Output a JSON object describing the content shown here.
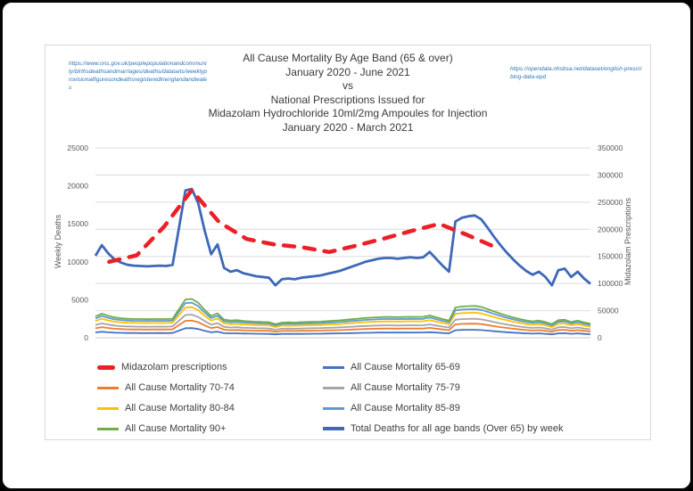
{
  "title": {
    "line1": "All Cause Mortality By Age Band (65 & over)",
    "line2": "January 2020 - June 2021",
    "line3": "vs",
    "line4": "National Prescriptions Issued for",
    "line5": "Midazolam Hydrochloride 10ml/2mg Ampoules for Injection",
    "line6": "January 2020 - March 2021"
  },
  "links": {
    "ons": "https://www.ons.gov.uk/peoplepopulationandcommunity/birthsdeathsandmarriages/deaths/datasets/weeklyprovisionalfiguresondeathsregisteredinenglandandwales",
    "nhsbsa": "https://opendata.nhsbsa.net/dataset/english-prescribing-data-epd"
  },
  "axes": {
    "left_title": "Weekly Deaths",
    "right_title": "Midazolam Prescriptions",
    "left_ticks": [
      0,
      5000,
      10000,
      15000,
      20000,
      25000
    ],
    "right_ticks": [
      0,
      50000,
      100000,
      150000,
      200000,
      250000,
      300000,
      350000
    ]
  },
  "legend": {
    "items": [
      {
        "label": "Midazolam prescriptions",
        "color": "#ec1f27",
        "style": "dash-thick"
      },
      {
        "label": "All Cause Mortality 65-69",
        "color": "#4472c4",
        "style": "line"
      },
      {
        "label": "All Cause Mortality 70-74",
        "color": "#ed7d31",
        "style": "line"
      },
      {
        "label": "All Cause Mortality 75-79",
        "color": "#a5a5a5",
        "style": "line"
      },
      {
        "label": "All Cause Mortality 80-84",
        "color": "#ffc000",
        "style": "line"
      },
      {
        "label": "All Cause Mortality 85-89",
        "color": "#5b9bd5",
        "style": "line"
      },
      {
        "label": "All Cause Mortality 90+",
        "color": "#70ad47",
        "style": "line"
      },
      {
        "label": "Total Deaths for all age bands (Over 65) by week",
        "color": "#3e68b8",
        "style": "line-thick"
      }
    ]
  },
  "chart_data": {
    "type": "line",
    "x_description": "Weekly points Jan 2020 - Jun 2021 (78 weeks, no x tick labels shown); Midazolam series is monthly Jan 2020 - Mar 2021 (15 months)",
    "left_axis": {
      "title": "Weekly Deaths",
      "range": [
        0,
        25000
      ]
    },
    "right_axis": {
      "title": "Midazolam Prescriptions",
      "range": [
        0,
        350000
      ]
    },
    "grid": "horizontal gridlines at right-axis ticks",
    "legend_position": "bottom, two columns",
    "series": [
      {
        "id": "mortality-70-74",
        "name": "All Cause Mortality 70-74",
        "axis": "left",
        "color": "#ed7d31",
        "dashed": false,
        "values": [
          1240,
          1400,
          1280,
          1180,
          1140,
          1100,
          1090,
          1090,
          1080,
          1090,
          1090,
          1090,
          1100,
          1670,
          2230,
          2250,
          2040,
          1620,
          1270,
          1410,
          1060,
          1000,
          1020,
          980,
          950,
          930,
          920,
          910,
          790,
          890,
          900,
          890,
          910,
          920,
          930,
          940,
          970,
          990,
          1010,
          1050,
          1080,
          1120,
          1150,
          1170,
          1200,
          1210,
          1210,
          1200,
          1210,
          1220,
          1210,
          1220,
          1300,
          1200,
          1090,
          1000,
          1760,
          1820,
          1840,
          1850,
          1790,
          1670,
          1530,
          1400,
          1290,
          1180,
          1090,
          1010,
          950,
          1000,
          920,
          790,
          1020,
          1050,
          920,
          1000,
          900,
          820
        ]
      },
      {
        "id": "mortality-75-79",
        "name": "All Cause Mortality 75-79",
        "axis": "left",
        "color": "#a5a5a5",
        "dashed": false,
        "values": [
          1670,
          1890,
          1720,
          1600,
          1530,
          1490,
          1470,
          1460,
          1460,
          1460,
          1470,
          1460,
          1490,
          2250,
          3010,
          3040,
          2740,
          2190,
          1710,
          1910,
          1430,
          1350,
          1380,
          1320,
          1290,
          1260,
          1240,
          1220,
          1070,
          1190,
          1210,
          1190,
          1220,
          1240,
          1260,
          1270,
          1300,
          1330,
          1360,
          1410,
          1460,
          1500,
          1550,
          1580,
          1610,
          1630,
          1630,
          1610,
          1630,
          1640,
          1630,
          1640,
          1750,
          1610,
          1470,
          1350,
          2370,
          2450,
          2480,
          2500,
          2420,
          2250,
          2060,
          1890,
          1740,
          1600,
          1470,
          1360,
          1290,
          1350,
          1240,
          1070,
          1380,
          1410,
          1240,
          1350,
          1210,
          1100
        ]
      },
      {
        "id": "mortality-80-84",
        "name": "All Cause Mortality 80-84",
        "axis": "left",
        "color": "#ffc000",
        "dashed": false,
        "values": [
          2210,
          2500,
          2280,
          2110,
          2030,
          1970,
          1950,
          1940,
          1930,
          1940,
          1950,
          1940,
          1970,
          2970,
          3980,
          4020,
          3630,
          2890,
          2260,
          2520,
          1890,
          1780,
          1820,
          1740,
          1700,
          1660,
          1640,
          1620,
          1410,
          1580,
          1600,
          1580,
          1620,
          1640,
          1660,
          1680,
          1720,
          1760,
          1800,
          1870,
          1930,
          1990,
          2050,
          2090,
          2130,
          2150,
          2150,
          2130,
          2150,
          2170,
          2150,
          2170,
          2320,
          2130,
          1950,
          1780,
          3140,
          3240,
          3280,
          3300,
          3200,
          2970,
          2730,
          2500,
          2300,
          2110,
          1950,
          1800,
          1700,
          1780,
          1640,
          1410,
          1820,
          1870,
          1640,
          1780,
          1600,
          1460
        ]
      },
      {
        "id": "mortality-85-89",
        "name": "All Cause Mortality 85-89",
        "axis": "left",
        "color": "#5b9bd5",
        "dashed": false,
        "values": [
          2540,
          2870,
          2610,
          2420,
          2330,
          2260,
          2230,
          2220,
          2210,
          2220,
          2230,
          2220,
          2260,
          3410,
          4560,
          4610,
          4160,
          3310,
          2590,
          2890,
          2160,
          2040,
          2090,
          2000,
          1950,
          1900,
          1880,
          1860,
          1620,
          1810,
          1830,
          1810,
          1860,
          1880,
          1900,
          1930,
          1970,
          2020,
          2070,
          2140,
          2210,
          2280,
          2350,
          2400,
          2440,
          2470,
          2470,
          2440,
          2470,
          2490,
          2470,
          2490,
          2660,
          2440,
          2230,
          2040,
          3600,
          3710,
          3760,
          3780,
          3670,
          3410,
          3130,
          2870,
          2630,
          2420,
          2230,
          2070,
          1950,
          2040,
          1880,
          1620,
          2090,
          2140,
          1880,
          2040,
          1830,
          1670
        ]
      },
      {
        "id": "mortality-90-plus",
        "name": "All Cause Mortality 90+",
        "axis": "left",
        "color": "#70ad47",
        "dashed": false,
        "values": [
          2810,
          3170,
          2890,
          2680,
          2570,
          2500,
          2470,
          2460,
          2440,
          2460,
          2470,
          2460,
          2500,
          3770,
          5040,
          5100,
          4600,
          3670,
          2860,
          3200,
          2390,
          2260,
          2310,
          2210,
          2160,
          2110,
          2080,
          2050,
          1790,
          2000,
          2030,
          2000,
          2050,
          2080,
          2110,
          2130,
          2180,
          2240,
          2290,
          2370,
          2440,
          2520,
          2600,
          2650,
          2700,
          2730,
          2730,
          2700,
          2730,
          2760,
          2730,
          2760,
          2940,
          2700,
          2470,
          2260,
          3980,
          4110,
          4160,
          4190,
          4060,
          3770,
          3460,
          3170,
          2910,
          2680,
          2470,
          2290,
          2160,
          2260,
          2080,
          1790,
          2310,
          2370,
          2080,
          2260,
          2030,
          1850
        ]
      },
      {
        "id": "mortality-65-69",
        "name": "All Cause Mortality 65-69",
        "axis": "left",
        "color": "#4472c4",
        "dashed": false,
        "values": [
          700,
          790,
          720,
          670,
          640,
          620,
          620,
          610,
          610,
          610,
          620,
          610,
          620,
          940,
          1260,
          1270,
          1150,
          920,
          720,
          800,
          600,
          570,
          580,
          550,
          540,
          530,
          520,
          510,
          450,
          500,
          510,
          500,
          510,
          520,
          530,
          530,
          550,
          560,
          570,
          590,
          610,
          630,
          650,
          660,
          680,
          680,
          680,
          680,
          680,
          690,
          680,
          690,
          730,
          680,
          620,
          570,
          990,
          1030,
          1040,
          1050,
          1010,
          940,
          860,
          790,
          730,
          670,
          620,
          570,
          540,
          570,
          520,
          450,
          580,
          590,
          520,
          570,
          510,
          460
        ]
      },
      {
        "id": "total-deaths",
        "name": "Total Deaths for all age bands (Over 65) by week",
        "axis": "left",
        "color": "#3e68b8",
        "dashed": false,
        "values": [
          10800,
          12200,
          11100,
          10300,
          9900,
          9600,
          9500,
          9450,
          9400,
          9450,
          9500,
          9450,
          9600,
          14500,
          19400,
          19600,
          17700,
          14100,
          11000,
          12300,
          9200,
          8700,
          8900,
          8500,
          8300,
          8100,
          8000,
          7900,
          6900,
          7700,
          7800,
          7700,
          7900,
          8000,
          8100,
          8200,
          8400,
          8600,
          8800,
          9100,
          9400,
          9700,
          10000,
          10200,
          10400,
          10500,
          10500,
          10400,
          10500,
          10600,
          10500,
          10600,
          11300,
          10400,
          9500,
          8700,
          15300,
          15800,
          16000,
          16100,
          15600,
          14500,
          13300,
          12200,
          11200,
          10300,
          9500,
          8800,
          8300,
          8700,
          8000,
          6900,
          8900,
          9100,
          8000,
          8700,
          7800,
          7100
        ]
      },
      {
        "id": "midazolam-prescriptions",
        "name": "Midazolam prescriptions",
        "axis": "right",
        "color": "#ec1f27",
        "dashed": true,
        "values": [
          140000,
          152000,
          205000,
          272000,
          213000,
          182000,
          172000,
          167000,
          158000,
          170000,
          183000,
          197000,
          210000,
          190000,
          168000
        ]
      }
    ]
  }
}
